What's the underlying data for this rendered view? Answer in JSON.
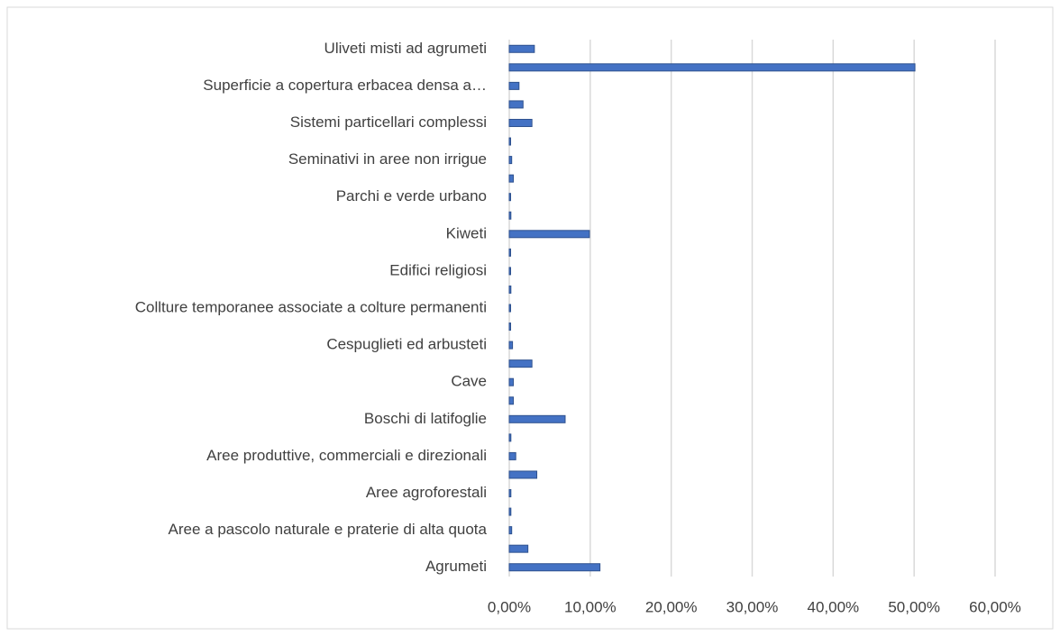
{
  "chart_data": {
    "type": "bar",
    "orientation": "horizontal",
    "color": "#4472c4",
    "grid": true,
    "categories": [
      "Agrumeti",
      null,
      "Aree a pascolo naturale e praterie di alta quota",
      null,
      "Aree agroforestali",
      null,
      "Aree produttive, commerciali e direzionali",
      null,
      "Boschi di latifoglie",
      null,
      "Cave",
      null,
      "Cespuglieti ed arbusteti",
      null,
      "Collture temporanee associate a colture permanenti",
      null,
      "Edifici religiosi",
      null,
      "Kiweti",
      null,
      "Parchi e verde urbano",
      null,
      "Seminativi in aree non irrigue",
      null,
      "Sistemi particellari complessi",
      null,
      "Superficie a copertura erbacea densa a…",
      null,
      "Uliveti misti ad agrumeti"
    ],
    "values": [
      11.2,
      2.3,
      0.3,
      0.2,
      0.2,
      3.4,
      0.8,
      0.2,
      6.9,
      0.5,
      0.5,
      2.8,
      0.4,
      0.1,
      0.1,
      0.2,
      0.1,
      0.1,
      9.9,
      0.2,
      0.1,
      0.5,
      0.3,
      0.1,
      2.8,
      1.7,
      1.2,
      50.1,
      3.1
    ],
    "xlim": [
      0,
      60
    ],
    "xticks": [
      {
        "value": 0,
        "label": "0,00%"
      },
      {
        "value": 10,
        "label": "10,00%"
      },
      {
        "value": 20,
        "label": "20,00%"
      },
      {
        "value": 30,
        "label": "30,00%"
      },
      {
        "value": 40,
        "label": "40,00%"
      },
      {
        "value": 50,
        "label": "50,00%"
      },
      {
        "value": 60,
        "label": "60,00%"
      }
    ]
  }
}
